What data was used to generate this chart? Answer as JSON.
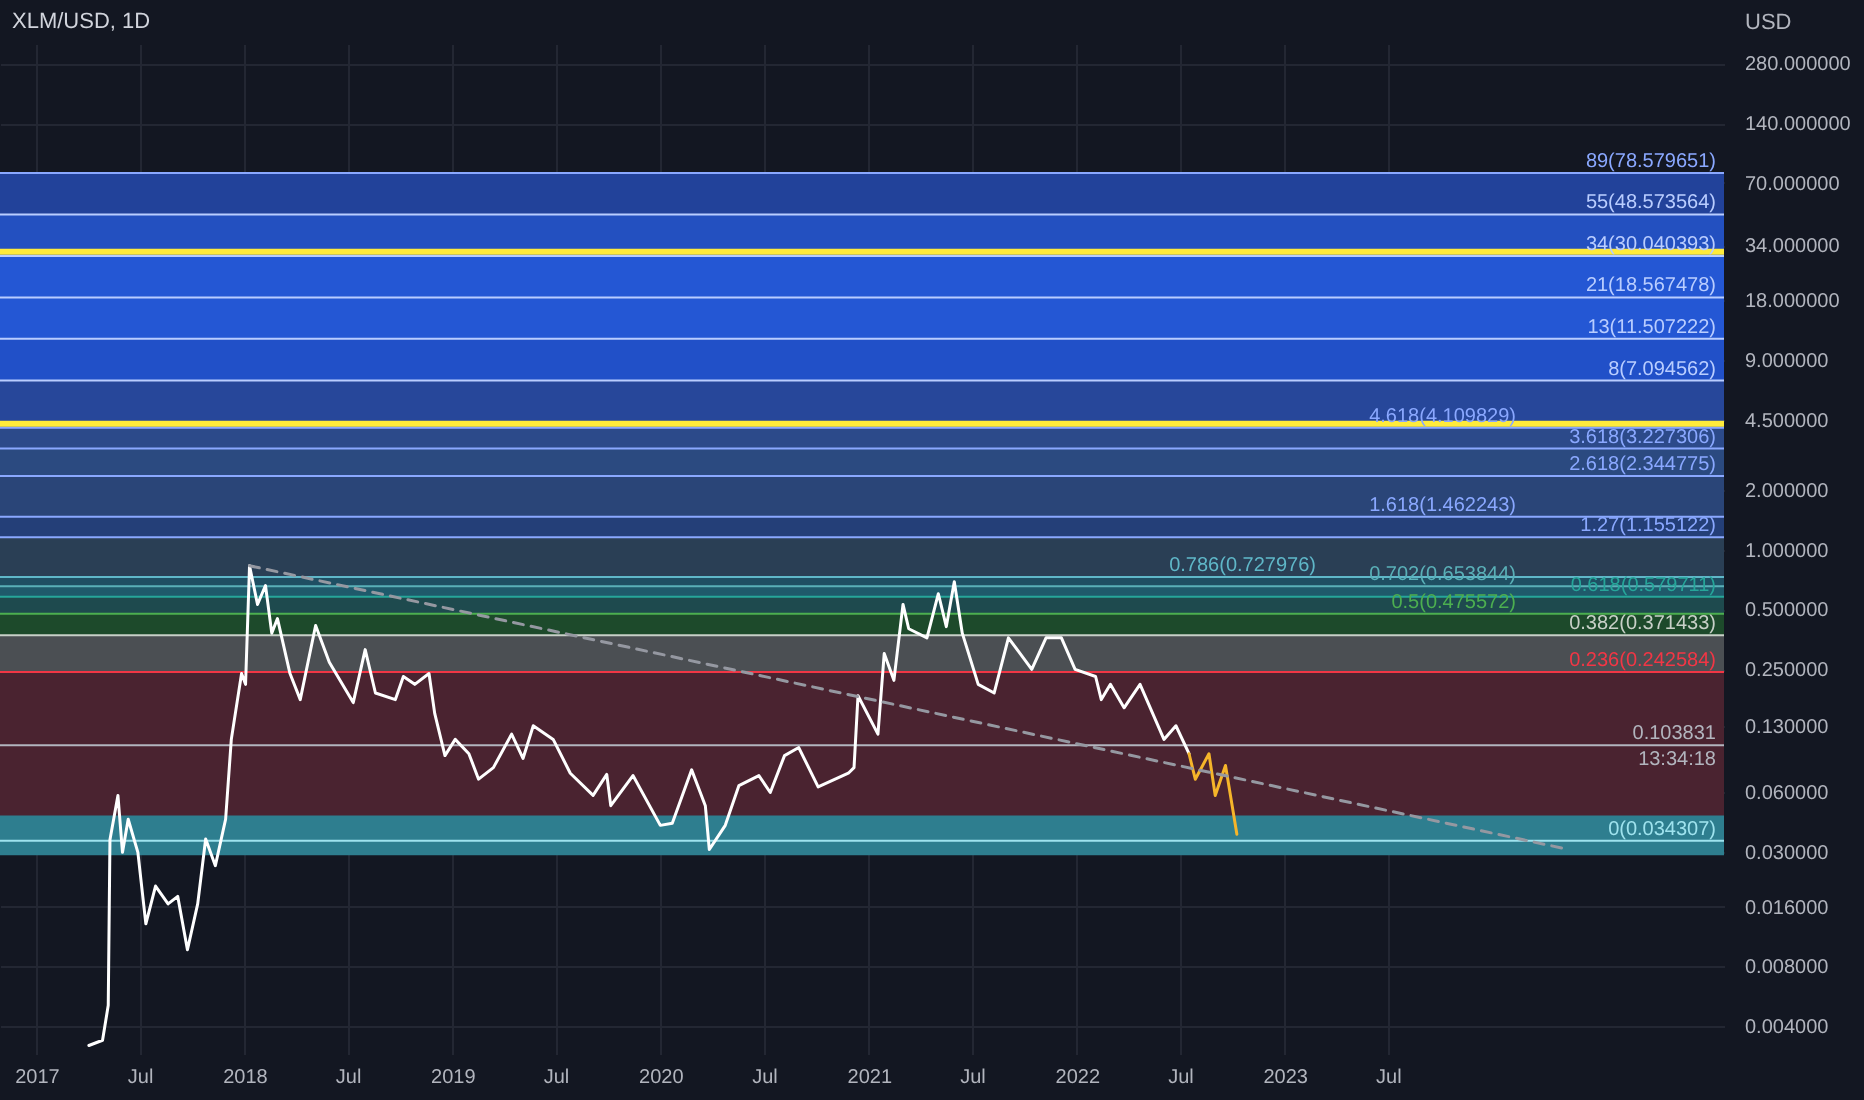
{
  "chart_data": {
    "type": "line",
    "title": "XLM/USD, 1D",
    "ylabel": "USD",
    "log": true,
    "grid": true,
    "xlim": [
      "2016-10-29",
      "2025-02-10"
    ],
    "xticks": [
      {
        "value": "2017-01-01",
        "label": "2017"
      },
      {
        "value": "2017-07-01",
        "label": "Jul"
      },
      {
        "value": "2018-01-01",
        "label": "2018"
      },
      {
        "value": "2018-07-01",
        "label": "Jul"
      },
      {
        "value": "2019-01-01",
        "label": "2019"
      },
      {
        "value": "2019-07-01",
        "label": "Jul"
      },
      {
        "value": "2020-01-01",
        "label": "2020"
      },
      {
        "value": "2020-07-01",
        "label": "Jul"
      },
      {
        "value": "2021-01-01",
        "label": "2021"
      },
      {
        "value": "2021-07-01",
        "label": "Jul"
      },
      {
        "value": "2022-01-01",
        "label": "2022"
      },
      {
        "value": "2022-07-01",
        "label": "Jul"
      },
      {
        "value": "2023-01-01",
        "label": "2023"
      },
      {
        "value": "2023-07-01",
        "label": "Jul"
      }
    ],
    "ylim": [
      0.0029,
      350
    ],
    "yticks": [
      {
        "value": 0.004,
        "label": "0.004000"
      },
      {
        "value": 0.008,
        "label": "0.008000"
      },
      {
        "value": 0.016,
        "label": "0.016000"
      },
      {
        "value": 0.03,
        "label": "0.030000"
      },
      {
        "value": 0.06,
        "label": "0.060000"
      },
      {
        "value": 0.13,
        "label": "0.130000"
      },
      {
        "value": 0.25,
        "label": "0.250000"
      },
      {
        "value": 0.5,
        "label": "0.500000"
      },
      {
        "value": 1,
        "label": "1.000000"
      },
      {
        "value": 2,
        "label": "2.000000"
      },
      {
        "value": 4.5,
        "label": "4.500000"
      },
      {
        "value": 9,
        "label": "9.000000"
      },
      {
        "value": 18,
        "label": "18.000000"
      },
      {
        "value": 34,
        "label": "34.000000"
      },
      {
        "value": 70,
        "label": "70.000000"
      },
      {
        "value": 140,
        "label": "140.000000"
      },
      {
        "value": 280,
        "label": "280.000000"
      }
    ],
    "series": [
      {
        "color": "#ffffff",
        "x": [
          "2017-04-03",
          "2017-04-27",
          "2017-05-07",
          "2017-05-10",
          "2017-05-24",
          "2017-06-01",
          "2017-06-11",
          "2017-06-28",
          "2017-07-12",
          "2017-07-29",
          "2017-08-20",
          "2017-09-06",
          "2017-09-23",
          "2017-10-11",
          "2017-10-25",
          "2017-11-11",
          "2017-11-29",
          "2017-12-09",
          "2017-12-27",
          "2018-01-03",
          "2018-01-10",
          "2018-01-24",
          "2018-02-07",
          "2018-02-18",
          "2018-02-28",
          "2018-03-22",
          "2018-04-09",
          "2018-05-06",
          "2018-05-30",
          "2018-07-11",
          "2018-08-01",
          "2018-08-19",
          "2018-09-23",
          "2018-10-07",
          "2018-10-27",
          "2018-11-21",
          "2018-12-01",
          "2018-12-19",
          "2019-01-06",
          "2019-01-30",
          "2019-02-16",
          "2019-03-14",
          "2019-04-15",
          "2019-05-05",
          "2019-05-23",
          "2019-06-27",
          "2019-07-27",
          "2019-09-05",
          "2019-09-29",
          "2019-10-06",
          "2019-11-14",
          "2020-01-01",
          "2020-01-22",
          "2020-02-25",
          "2020-03-20",
          "2020-03-27",
          "2020-04-24",
          "2020-05-18",
          "2020-06-22",
          "2020-07-12",
          "2020-08-06",
          "2020-08-31",
          "2020-10-04",
          "2020-11-26",
          "2020-12-06",
          "2020-12-13",
          "2021-01-17",
          "2021-01-28",
          "2021-02-14",
          "2021-03-02",
          "2021-03-12",
          "2021-04-13",
          "2021-05-03",
          "2021-05-17",
          "2021-05-31",
          "2021-06-14",
          "2021-07-12",
          "2021-08-09",
          "2021-09-03",
          "2021-10-14",
          "2021-11-08",
          "2021-12-05",
          "2021-12-29",
          "2022-02-03",
          "2022-02-13",
          "2022-03-01",
          "2022-03-25",
          "2022-04-22",
          "2022-06-03",
          "2022-06-24",
          "2022-07-17"
        ],
        "values": [
          0.0032,
          0.0034,
          0.0051,
          0.0347,
          0.058,
          0.03,
          0.044,
          0.03,
          0.0131,
          0.0203,
          0.0165,
          0.018,
          0.0097,
          0.0165,
          0.035,
          0.0257,
          0.044,
          0.111,
          0.238,
          0.21,
          0.83,
          0.53,
          0.66,
          0.38,
          0.45,
          0.238,
          0.176,
          0.415,
          0.271,
          0.17,
          0.314,
          0.19,
          0.176,
          0.23,
          0.21,
          0.238,
          0.15,
          0.092,
          0.111,
          0.094,
          0.07,
          0.08,
          0.118,
          0.089,
          0.13,
          0.111,
          0.075,
          0.058,
          0.074,
          0.0515,
          0.073,
          0.041,
          0.042,
          0.078,
          0.0515,
          0.031,
          0.041,
          0.065,
          0.073,
          0.06,
          0.092,
          0.101,
          0.064,
          0.075,
          0.08,
          0.184,
          0.118,
          0.3,
          0.22,
          0.53,
          0.4,
          0.36,
          0.6,
          0.41,
          0.69,
          0.38,
          0.21,
          0.19,
          0.36,
          0.25,
          0.36,
          0.36,
          0.25,
          0.23,
          0.176,
          0.21,
          0.16,
          0.21,
          0.111,
          0.13,
          0.094
        ]
      },
      {
        "type": "line",
        "color": "#f5b52a",
        "x": [
          "2022-07-17",
          "2022-07-28",
          "2022-08-21",
          "2022-09-01",
          "2022-09-19",
          "2022-10-09"
        ],
        "values": [
          0.094,
          0.07,
          0.094,
          0.058,
          0.082,
          0.037
        ]
      },
      {
        "type": "line",
        "color": "#9598a1",
        "line_style": "dashed",
        "x": [
          "2018-01-10",
          "2024-05-13"
        ],
        "values": [
          0.83,
          0.031
        ]
      }
    ],
    "bands": [
      {
        "axis": "y",
        "from": 0.034307,
        "to": 0.242584,
        "color": "#4a2330"
      },
      {
        "axis": "y",
        "from": 0.242584,
        "to": 0.371433,
        "color": "#4b4f53"
      },
      {
        "axis": "y",
        "from": 0.371433,
        "to": 0.475572,
        "color": "#1d4a2b"
      },
      {
        "axis": "y",
        "from": 0.475572,
        "to": 0.579711,
        "color": "#1e4a4e"
      },
      {
        "axis": "y",
        "from": 0.579711,
        "to": 0.653844,
        "color": "#1f5a6b"
      },
      {
        "axis": "y",
        "from": 0.653844,
        "to": 0.727976,
        "color": "#1f4f63"
      },
      {
        "axis": "y",
        "from": 0.727976,
        "to": 1.155122,
        "color": "#2a3f55"
      },
      {
        "axis": "y",
        "from": 1.155122,
        "to": 1.462243,
        "color": "#243f78"
      },
      {
        "axis": "y",
        "from": 1.462243,
        "to": 2.344775,
        "color": "#2a4578"
      },
      {
        "axis": "y",
        "from": 2.344775,
        "to": 3.227306,
        "color": "#2b4a80"
      },
      {
        "axis": "y",
        "from": 3.227306,
        "to": 4.109829,
        "color": "#2c4a8a"
      },
      {
        "axis": "y",
        "from": 4.109829,
        "to": 7.094562,
        "color": "#27479a"
      },
      {
        "axis": "y",
        "from": 7.094562,
        "to": 11.507222,
        "color": "#2150c8"
      },
      {
        "axis": "y",
        "from": 11.507222,
        "to": 18.567478,
        "color": "#2457d4"
      },
      {
        "axis": "y",
        "from": 18.567478,
        "to": 30.040393,
        "color": "#2457d4"
      },
      {
        "axis": "y",
        "from": 30.040393,
        "to": 48.573564,
        "color": "#2350c0"
      },
      {
        "axis": "y",
        "from": 48.573564,
        "to": 78.579651,
        "color": "#22429a"
      },
      {
        "axis": "y",
        "from": 0.029,
        "to": 0.046,
        "color": "#2e7e8f"
      }
    ],
    "ref_lines": [
      {
        "axis": "y",
        "value": 0.034307,
        "label": "0(0.034307)",
        "color": "#9fe3ee"
      },
      {
        "axis": "y",
        "value": 0.242584,
        "label": "0.236(0.242584)",
        "color": "#f23645"
      },
      {
        "axis": "y",
        "value": 0.371433,
        "label": "0.382(0.371433)",
        "color": "#c8d0c8"
      },
      {
        "axis": "y",
        "value": 0.475572,
        "label": "0.5(0.475572)",
        "color": "#4caf50"
      },
      {
        "axis": "y",
        "value": 0.579711,
        "label": "0.618(0.579711)",
        "color": "#26a69a"
      },
      {
        "axis": "y",
        "value": 0.653844,
        "label": "0.702(0.653844)",
        "color": "#5ab0b8"
      },
      {
        "axis": "y",
        "value": 0.727976,
        "label": "0.786(0.727976)",
        "color": "#5fb7c8"
      },
      {
        "axis": "y",
        "value": 1.155122,
        "label": "1.27(1.155122)",
        "color": "#8aa8ff"
      },
      {
        "axis": "y",
        "value": 1.462243,
        "label": "1.618(1.462243)",
        "color": "#8aa8ff"
      },
      {
        "axis": "y",
        "value": 2.344775,
        "label": "2.618(2.344775)",
        "color": "#8aa8ff"
      },
      {
        "axis": "y",
        "value": 3.227306,
        "label": "3.618(3.227306)",
        "color": "#8aa8ff"
      },
      {
        "axis": "y",
        "value": 4.109829,
        "label": "4.618(4.109829)",
        "color": "#8aa8ff"
      },
      {
        "axis": "y",
        "value": 7.094562,
        "label": "8(7.094562)",
        "color": "#b9cdff"
      },
      {
        "axis": "y",
        "value": 11.507222,
        "label": "13(11.507222)",
        "color": "#b9cdff"
      },
      {
        "axis": "y",
        "value": 18.567478,
        "label": "21(18.567478)",
        "color": "#b9cdff"
      },
      {
        "axis": "y",
        "value": 30.040393,
        "label": "34(30.040393)",
        "color": "#b9cdff"
      },
      {
        "axis": "y",
        "value": 48.573564,
        "label": "55(48.573564)",
        "color": "#b9cdff"
      },
      {
        "axis": "y",
        "value": 78.579651,
        "label": "89(78.579651)",
        "color": "#8aa8ff"
      },
      {
        "axis": "y",
        "value": 31.5,
        "color": "#ffeb3b"
      },
      {
        "axis": "y",
        "value": 4.3,
        "color": "#ffeb3b"
      },
      {
        "axis": "y",
        "value": 0.103831,
        "label": "0.103831",
        "color": "#b2b5be"
      }
    ],
    "annotations": [
      "13:34:18"
    ]
  }
}
